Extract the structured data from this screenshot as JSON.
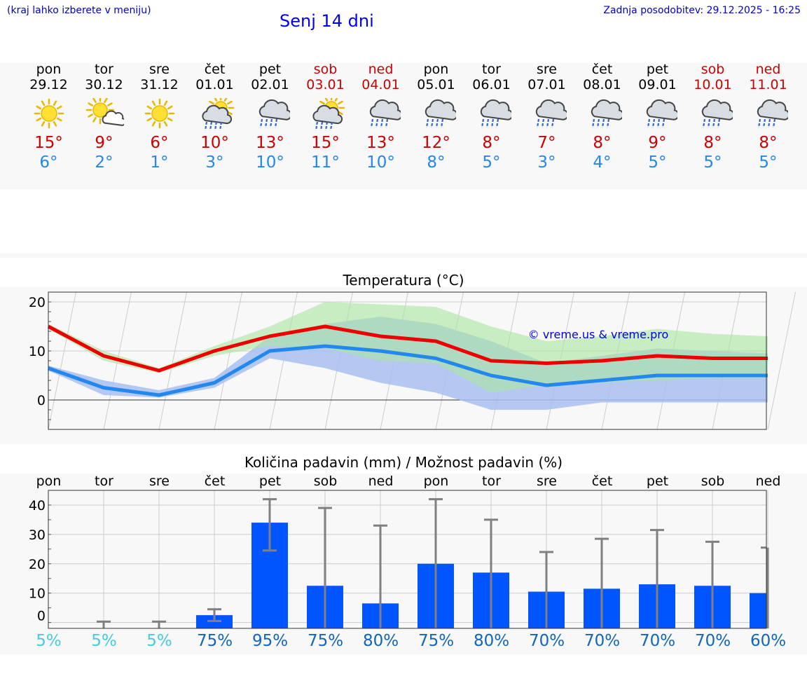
{
  "header": {
    "hint": "(kraj lahko izberete v meniju)",
    "title": "Senj 14 dni",
    "updated": "Zadnja posodobitev: 29.12.2025 - 16:25"
  },
  "days": [
    {
      "name": "pon",
      "date": "29.12",
      "icon": "sun-icon",
      "tmax": "15°",
      "tmin": "6°",
      "weekend": false
    },
    {
      "name": "tor",
      "date": "30.12",
      "icon": "sun-cloud-icon",
      "tmax": "9°",
      "tmin": "2°",
      "weekend": false
    },
    {
      "name": "sre",
      "date": "31.12",
      "icon": "sun-icon",
      "tmax": "6°",
      "tmin": "1°",
      "weekend": false
    },
    {
      "name": "čet",
      "date": "01.01",
      "icon": "sun-rain-icon",
      "tmax": "10°",
      "tmin": "3°",
      "weekend": false
    },
    {
      "name": "pet",
      "date": "02.01",
      "icon": "rain-cloud-icon",
      "tmax": "13°",
      "tmin": "10°",
      "weekend": false
    },
    {
      "name": "sob",
      "date": "03.01",
      "icon": "sun-rain-icon",
      "tmax": "15°",
      "tmin": "11°",
      "weekend": true
    },
    {
      "name": "ned",
      "date": "04.01",
      "icon": "rain-cloud-icon",
      "tmax": "13°",
      "tmin": "10°",
      "weekend": true
    },
    {
      "name": "pon",
      "date": "05.01",
      "icon": "rain-cloud-icon",
      "tmax": "12°",
      "tmin": "8°",
      "weekend": false
    },
    {
      "name": "tor",
      "date": "06.01",
      "icon": "rain-cloud-icon",
      "tmax": "8°",
      "tmin": "5°",
      "weekend": false
    },
    {
      "name": "sre",
      "date": "07.01",
      "icon": "rain-cloud-icon",
      "tmax": "7°",
      "tmin": "3°",
      "weekend": false
    },
    {
      "name": "čet",
      "date": "08.01",
      "icon": "rain-cloud-icon",
      "tmax": "8°",
      "tmin": "4°",
      "weekend": false
    },
    {
      "name": "pet",
      "date": "09.01",
      "icon": "rain-cloud-icon",
      "tmax": "9°",
      "tmin": "5°",
      "weekend": false
    },
    {
      "name": "sob",
      "date": "10.01",
      "icon": "rain-cloud-icon",
      "tmax": "8°",
      "tmin": "5°",
      "weekend": true
    },
    {
      "name": "ned",
      "date": "11.01",
      "icon": "rain-cloud-icon",
      "tmax": "8°",
      "tmin": "5°",
      "weekend": true
    }
  ],
  "colors": {
    "max": "#ee0000",
    "min": "#2288ee",
    "max_band": "#a8e6a0",
    "min_band": "#a8c0f0",
    "bar": "#0055ff",
    "errbar": "#808080",
    "pop_low": "#44ccdd",
    "pop_high": "#1166bb"
  },
  "chart_data": [
    {
      "type": "line",
      "title": "Temperatura (°C)",
      "watermark": "© vreme.us & vreme.pro",
      "ylim": [
        -6,
        22
      ],
      "yticks": [
        0,
        10,
        20
      ],
      "x": [
        0,
        1,
        2,
        3,
        4,
        5,
        6,
        7,
        8,
        9,
        10,
        11,
        12,
        13
      ],
      "series": [
        {
          "name": "max",
          "values": [
            15,
            9,
            6,
            10,
            13,
            15,
            13,
            12,
            8,
            7.5,
            8,
            9,
            8.5,
            8.5
          ]
        },
        {
          "name": "min",
          "values": [
            6.5,
            2.5,
            1,
            3.5,
            10,
            11,
            10,
            8.5,
            5,
            3,
            4,
            5,
            5,
            5
          ]
        }
      ],
      "max_band": {
        "upper": [
          15.5,
          10,
          6.5,
          11,
          15,
          20,
          19.5,
          19,
          15,
          12,
          13,
          14.5,
          13.5,
          13
        ],
        "lower": [
          14.5,
          8,
          5.5,
          9,
          11,
          10.5,
          8,
          7.5,
          1.5,
          3,
          3.5,
          4,
          4.5,
          4.5
        ]
      },
      "min_band": {
        "upper": [
          7,
          4,
          2,
          4.5,
          13,
          15.5,
          17,
          15.5,
          12,
          7.5,
          9,
          10.5,
          10,
          9.5
        ],
        "lower": [
          6,
          1,
          0.5,
          2.5,
          8.5,
          6.5,
          3.5,
          1.5,
          -2,
          -2,
          -0.5,
          -0.5,
          -0.5,
          -0.5
        ]
      }
    },
    {
      "type": "bar",
      "title": "Količina padavin (mm) / Možnost padavin (%)",
      "ylim": [
        -2,
        45
      ],
      "yticks": [
        0,
        10,
        20,
        30,
        40
      ],
      "categories": [
        "pon",
        "tor",
        "sre",
        "čet",
        "pet",
        "sob",
        "ned",
        "pon",
        "tor",
        "sre",
        "čet",
        "pet",
        "sob",
        "ned"
      ],
      "values": [
        0,
        0,
        0,
        2.5,
        34,
        12.5,
        6.5,
        20,
        17,
        10.5,
        11.5,
        13,
        12.5,
        10
      ],
      "err_low": [
        0,
        0,
        0,
        0.5,
        24.5,
        0,
        0,
        0,
        0,
        0,
        0,
        0,
        0,
        0
      ],
      "err_high": [
        0,
        0.3,
        0.3,
        4.5,
        42,
        39,
        33,
        42,
        35,
        24,
        28.5,
        31.5,
        27.5,
        25.5
      ],
      "probability": [
        "5%",
        "5%",
        "5%",
        "75%",
        "95%",
        "75%",
        "80%",
        "75%",
        "80%",
        "70%",
        "70%",
        "70%",
        "70%",
        "60%"
      ]
    }
  ]
}
